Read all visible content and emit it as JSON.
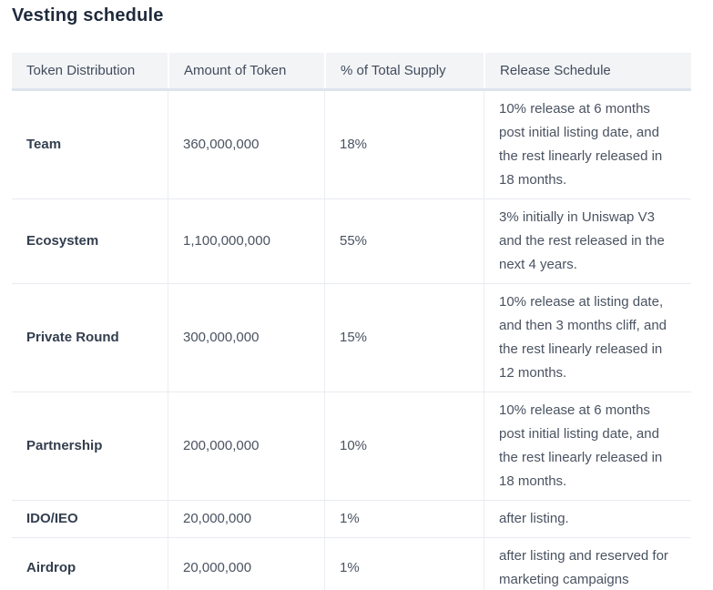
{
  "page": {
    "title": "Vesting schedule"
  },
  "table": {
    "columns": [
      "Token Distribution",
      "Amount of Token",
      "% of Total Supply",
      "Release Schedule"
    ],
    "rows": [
      {
        "distribution": "Team",
        "amount": "360,000,000",
        "percent": "18%",
        "release": "10% release at 6 months post initial listing date, and the rest linearly released in 18 months."
      },
      {
        "distribution": "Ecosystem",
        "amount": "1,100,000,000",
        "percent": "55%",
        "release": "3% initially in Uniswap V3 and the rest released in the next 4 years."
      },
      {
        "distribution": "Private Round",
        "amount": "300,000,000",
        "percent": "15%",
        "release": "10% release at listing date, and then 3 months cliff, and the rest linearly released in 12 months."
      },
      {
        "distribution": "Partnership",
        "amount": "200,000,000",
        "percent": "10%",
        "release": "10% release at 6 months post initial listing date, and the rest linearly released in 18 months."
      },
      {
        "distribution": "IDO/IEO",
        "amount": "20,000,000",
        "percent": "1%",
        "release": "after listing."
      },
      {
        "distribution": "Airdrop",
        "amount": "20,000,000",
        "percent": "1%",
        "release": "after listing and reserved for marketing campaigns"
      }
    ]
  },
  "colors": {
    "header_bg": "#f3f4f6",
    "header_separator": "#dee4ec",
    "row_border": "#e7ebf0",
    "column_divider": "#e9edf1",
    "title_text": "#1f2a3c",
    "body_text": "#4a5361",
    "bold_text": "#333e4e"
  }
}
